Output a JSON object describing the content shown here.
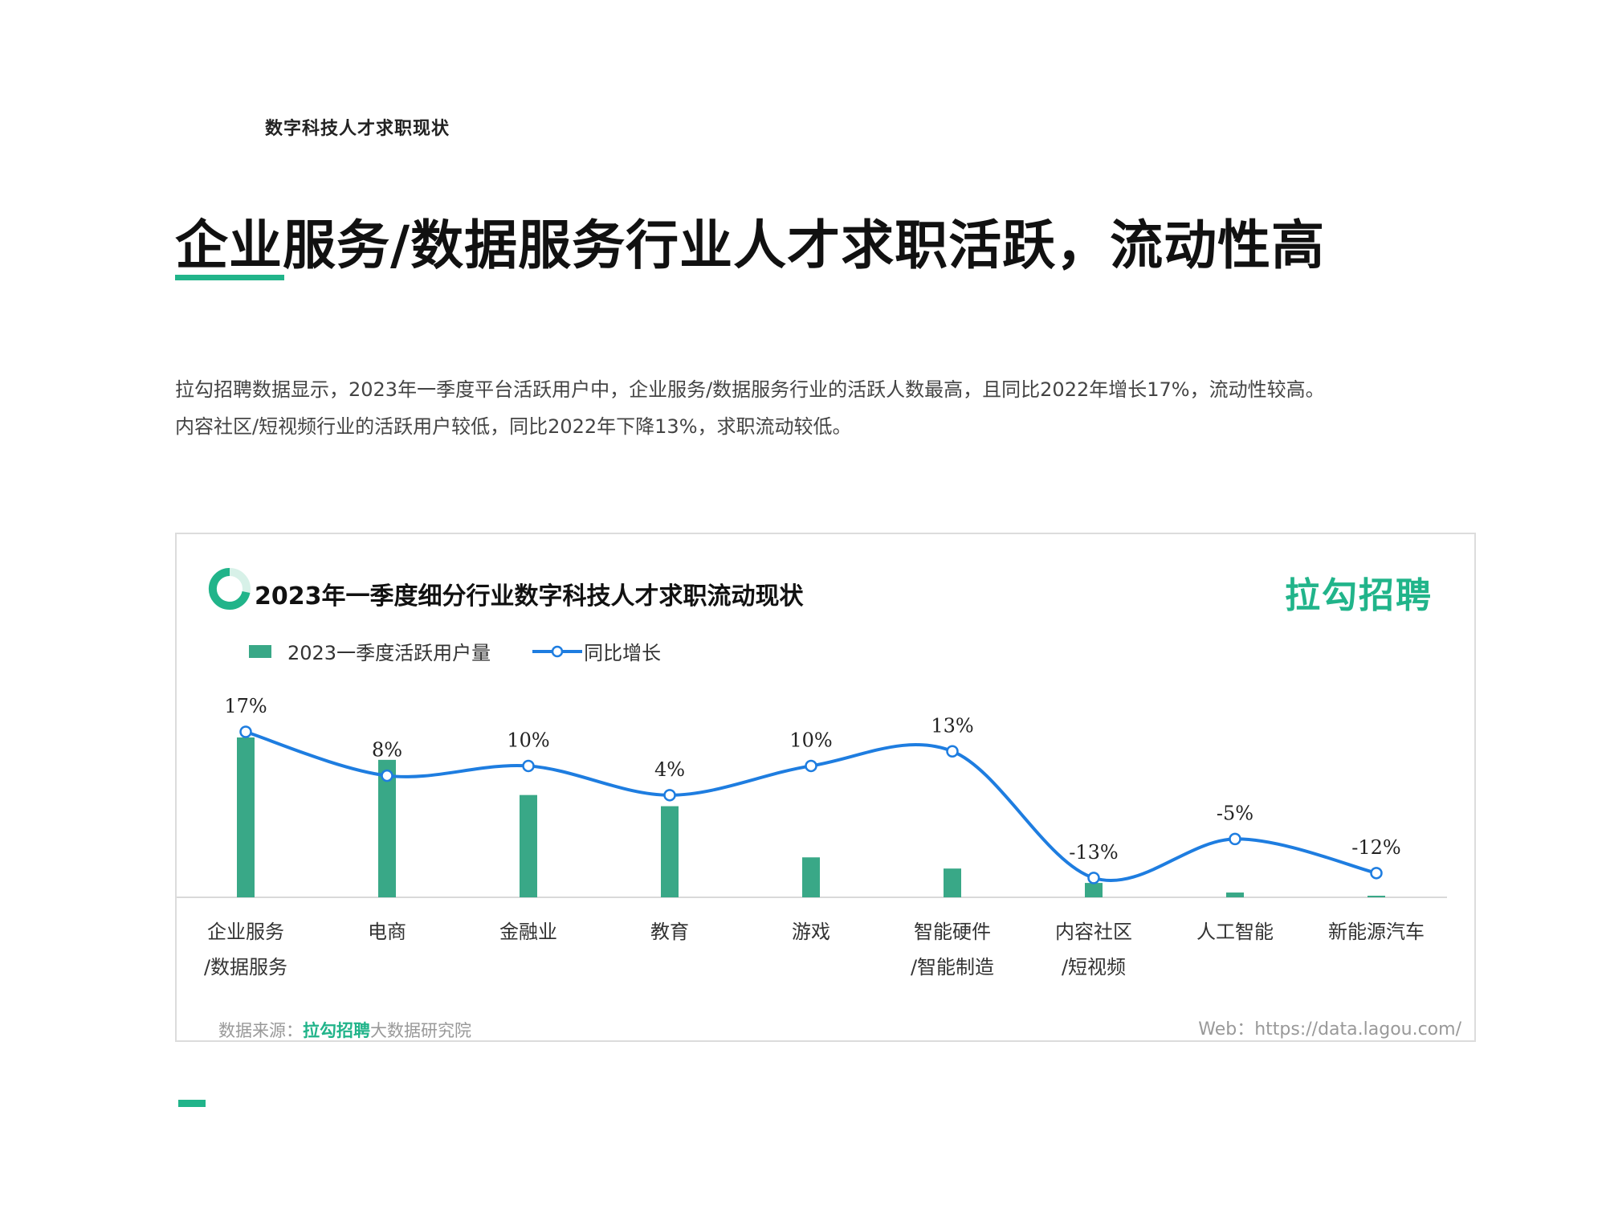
{
  "header": {
    "section_label": "数字科技人才求职现状",
    "title": "企业服务/数据服务行业人才求职活跃，流动性高"
  },
  "intro": {
    "line1": "拉勾招聘数据显示，2023年一季度平台活跃用户中，企业服务/数据服务行业的活跃人数最高，且同比2022年增长17%，流动性较高。",
    "line2": "内容社区/短视频行业的活跃用户较低，同比2022年下降13%，求职流动较低。"
  },
  "chart_card": {
    "brand_logo": "拉勾招聘",
    "legend": {
      "bar_label": "2023一季度活跃用户量",
      "line_label": "同比增长"
    },
    "footer": {
      "source_prefix": "数据来源：",
      "source_brand": "拉勾招聘",
      "source_suffix": "大数据研究院",
      "web": "Web：https://data.lagou.com/"
    }
  },
  "chart_data": {
    "type": "bar",
    "title": "2023年一季度细分行业数字科技人才求职流动现状",
    "categories": [
      [
        "企业服务",
        "/数据服务"
      ],
      [
        "电商"
      ],
      [
        "金融业"
      ],
      [
        "教育"
      ],
      [
        "游戏"
      ],
      [
        "智能硬件",
        "/智能制造"
      ],
      [
        "内容社区",
        "/短视频"
      ],
      [
        "人工智能"
      ],
      [
        "新能源汽车"
      ]
    ],
    "series": [
      {
        "name": "2023一季度活跃用户量",
        "type": "bar",
        "values": [
          100,
          86,
          64,
          57,
          25,
          18,
          9,
          3,
          1
        ],
        "color": "#39a887"
      },
      {
        "name": "同比增长",
        "type": "line",
        "values": [
          17,
          8,
          10,
          4,
          10,
          13,
          -13,
          -5,
          -12
        ],
        "labels": [
          "17%",
          "8%",
          "10%",
          "4%",
          "10%",
          "13%",
          "-13%",
          "-5%",
          "-12%"
        ],
        "color": "#1e7de0"
      }
    ],
    "bar_ylim": [
      0,
      100
    ],
    "line_ylim": [
      -15,
      17
    ],
    "grid": false,
    "legend_position": "top-left"
  }
}
